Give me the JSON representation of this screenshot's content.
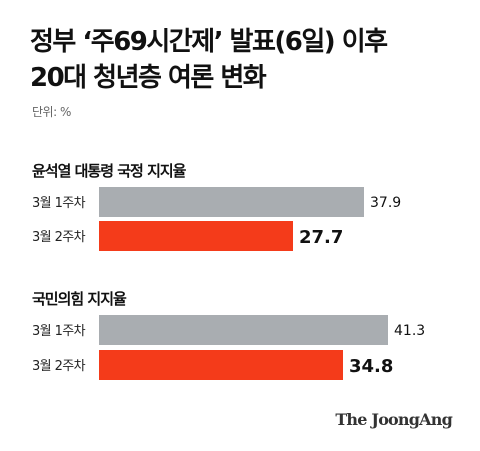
{
  "title_line1": "정부 ‘주69시간제’ 발표(6일) 이후",
  "title_line2": "20대 청년층 여론 변화",
  "unit_label": "단위: %",
  "logo": "The JoongAng",
  "colors": {
    "previous_week": "#a9adb1",
    "current_week": "#f43b1a",
    "text": "#111111"
  },
  "chart_data": [
    {
      "type": "bar",
      "title": "윤석열 대통령 국정 지지율",
      "categories": [
        "3월 1주차",
        "3월 2주차"
      ],
      "values": [
        37.9,
        27.7
      ],
      "value_labels": [
        "37.9",
        "27.7"
      ],
      "xlim": [
        0,
        50
      ]
    },
    {
      "type": "bar",
      "title": "국민의힘 지지율",
      "categories": [
        "3월 1주차",
        "3월 2주차"
      ],
      "values": [
        41.3,
        34.8
      ],
      "value_labels": [
        "41.3",
        "34.8"
      ],
      "xlim": [
        0,
        50
      ]
    }
  ]
}
